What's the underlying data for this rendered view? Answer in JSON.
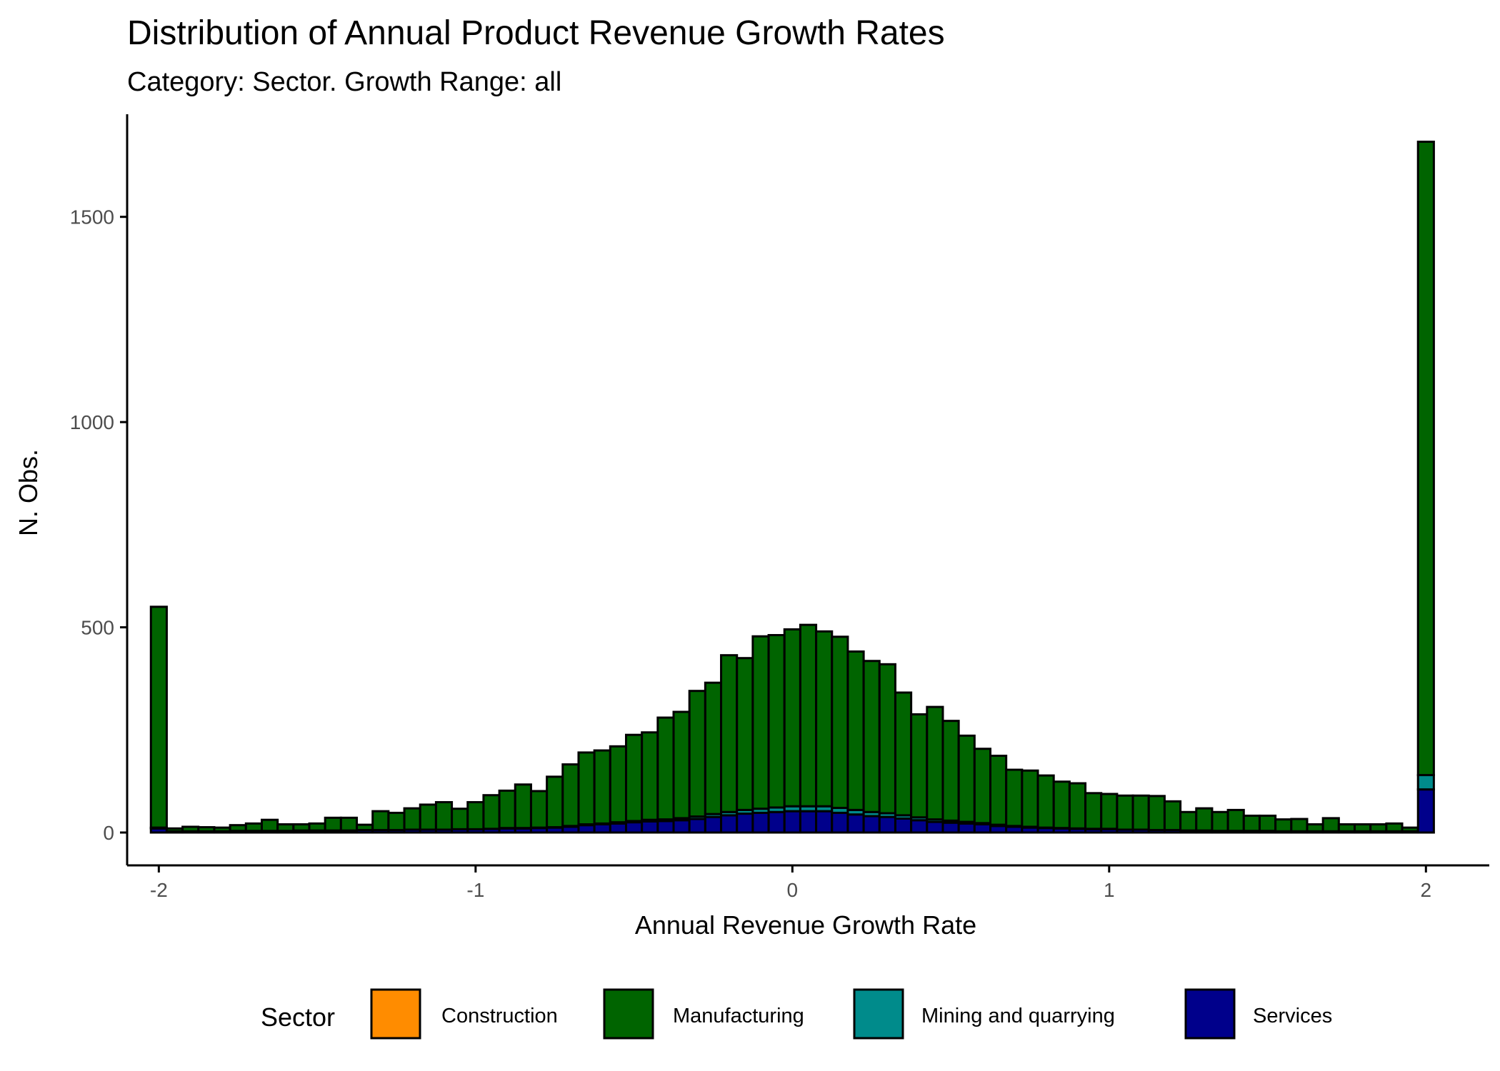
{
  "chart_data": {
    "type": "bar",
    "stacked": true,
    "title": "Distribution of Annual Product Revenue Growth Rates",
    "subtitle": "Category: Sector. Growth Range: all",
    "xlabel": "Annual Revenue Growth Rate",
    "ylabel": "N. Obs.",
    "xlim": [
      -2.1,
      2.2
    ],
    "ylim": [
      -80,
      1750
    ],
    "x_ticks": [
      -2,
      -1,
      0,
      1,
      2
    ],
    "x_tick_labels": [
      "-2",
      "-1",
      "0",
      "1",
      "2"
    ],
    "y_ticks": [
      0,
      500,
      1000,
      1500
    ],
    "y_tick_labels": [
      "0",
      "500",
      "1000",
      "1500"
    ],
    "bin_width": 0.05,
    "grid": false,
    "legend": {
      "title": "Sector",
      "position": "bottom",
      "entries": [
        "Construction",
        "Manufacturing",
        "Mining and quarrying",
        "Services"
      ]
    },
    "colors": {
      "Construction": "#FF8C00",
      "Manufacturing": "#006400",
      "Mining and quarrying": "#008B8B",
      "Services": "#00008B"
    },
    "x": [
      -2.0,
      -1.95,
      -1.9,
      -1.85,
      -1.8,
      -1.75,
      -1.7,
      -1.65,
      -1.6,
      -1.55,
      -1.5,
      -1.45,
      -1.4,
      -1.35,
      -1.3,
      -1.25,
      -1.2,
      -1.15,
      -1.1,
      -1.05,
      -1.0,
      -0.95,
      -0.9,
      -0.85,
      -0.8,
      -0.75,
      -0.7,
      -0.65,
      -0.6,
      -0.55,
      -0.5,
      -0.45,
      -0.4,
      -0.35,
      -0.3,
      -0.25,
      -0.2,
      -0.15,
      -0.1,
      -0.05,
      0.0,
      0.05,
      0.1,
      0.15,
      0.2,
      0.25,
      0.3,
      0.35,
      0.4,
      0.45,
      0.5,
      0.55,
      0.6,
      0.65,
      0.7,
      0.75,
      0.8,
      0.85,
      0.9,
      0.95,
      1.0,
      1.05,
      1.1,
      1.15,
      1.2,
      1.25,
      1.3,
      1.35,
      1.4,
      1.45,
      1.5,
      1.55,
      1.6,
      1.65,
      1.7,
      1.75,
      1.8,
      1.85,
      1.9,
      1.95,
      2.0
    ],
    "series": [
      {
        "name": "Construction",
        "values": [
          0,
          0,
          0,
          0,
          0,
          0,
          0,
          0,
          0,
          0,
          0,
          0,
          0,
          0,
          0,
          0,
          0,
          0,
          0,
          0,
          0,
          0,
          0,
          0,
          0,
          0,
          0,
          0,
          0,
          0,
          0,
          0,
          0,
          0,
          0,
          0,
          0,
          0,
          0,
          0,
          0,
          0,
          0,
          0,
          0,
          0,
          0,
          0,
          0,
          0,
          0,
          0,
          0,
          0,
          0,
          0,
          0,
          0,
          0,
          0,
          0,
          0,
          0,
          0,
          0,
          0,
          0,
          0,
          0,
          0,
          0,
          0,
          0,
          0,
          0,
          0,
          0,
          0,
          0,
          0,
          0
        ]
      },
      {
        "name": "Services",
        "values": [
          10,
          3,
          3,
          3,
          3,
          4,
          4,
          4,
          4,
          5,
          5,
          5,
          5,
          6,
          6,
          6,
          7,
          7,
          7,
          8,
          8,
          9,
          10,
          10,
          11,
          12,
          14,
          18,
          20,
          22,
          25,
          27,
          28,
          30,
          33,
          38,
          42,
          46,
          48,
          50,
          52,
          52,
          52,
          48,
          44,
          40,
          38,
          34,
          30,
          26,
          24,
          22,
          20,
          16,
          14,
          12,
          11,
          10,
          9,
          8,
          8,
          7,
          7,
          6,
          6,
          5,
          5,
          4,
          4,
          4,
          4,
          3,
          3,
          3,
          3,
          3,
          3,
          3,
          3,
          3,
          105
        ]
      },
      {
        "name": "Mining and quarrying",
        "values": [
          2,
          0,
          0,
          0,
          0,
          0,
          0,
          0,
          0,
          0,
          0,
          0,
          0,
          0,
          0,
          0,
          0,
          0,
          0,
          0,
          0,
          0,
          1,
          1,
          1,
          1,
          2,
          2,
          2,
          3,
          3,
          4,
          4,
          5,
          6,
          7,
          8,
          9,
          10,
          11,
          12,
          12,
          12,
          12,
          11,
          10,
          9,
          8,
          7,
          6,
          5,
          4,
          3,
          3,
          2,
          2,
          1,
          1,
          1,
          1,
          1,
          0,
          0,
          0,
          0,
          0,
          0,
          0,
          0,
          0,
          0,
          0,
          0,
          0,
          0,
          0,
          0,
          0,
          0,
          0,
          35
        ]
      },
      {
        "name": "Manufacturing",
        "values": [
          538,
          7,
          11,
          10,
          9,
          14,
          18,
          27,
          16,
          15,
          17,
          31,
          31,
          13,
          46,
          42,
          52,
          61,
          67,
          50,
          66,
          82,
          91,
          106,
          89,
          123,
          150,
          175,
          178,
          185,
          210,
          213,
          248,
          259,
          306,
          320,
          382,
          370,
          420,
          420,
          431,
          442,
          426,
          417,
          386,
          368,
          363,
          299,
          251,
          274,
          243,
          210,
          181,
          168,
          137,
          137,
          127,
          113,
          110,
          87,
          85,
          83,
          83,
          83,
          70,
          45,
          54,
          46,
          51,
          37,
          37,
          29,
          30,
          17,
          32,
          17,
          17,
          17,
          19,
          9,
          1543
        ]
      }
    ]
  }
}
